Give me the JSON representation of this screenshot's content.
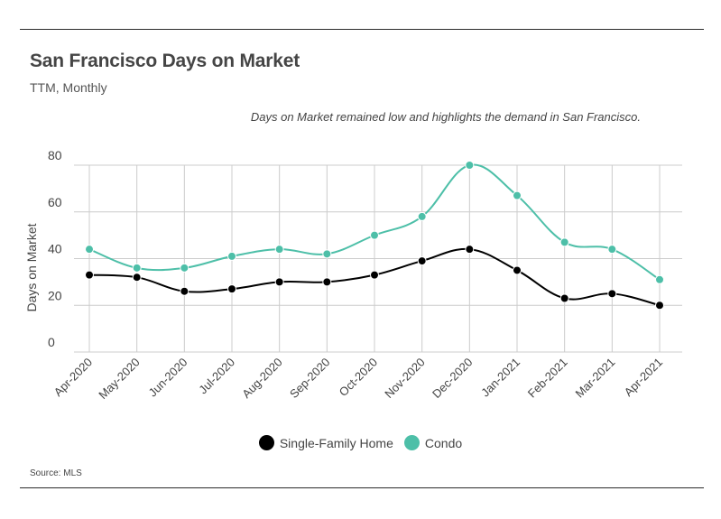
{
  "header": {
    "title": "San Francisco Days on Market",
    "subtitle": "TTM, Monthly"
  },
  "annotation": "Days on Market remained low and highlights the demand in San Francisco.",
  "source": "Source:  MLS",
  "colors": {
    "single_family": "#000000",
    "condo": "#4dbfa8",
    "grid": "#cccccc",
    "axis_text": "#444444"
  },
  "chart_data": {
    "type": "line",
    "title": "San Francisco Days on Market",
    "subtitle": "TTM, Monthly",
    "xlabel": "",
    "ylabel": "Days on Market",
    "ylim": [
      0,
      80
    ],
    "yticks": [
      0,
      20,
      40,
      60,
      80
    ],
    "grid": true,
    "legend_position": "bottom-center",
    "categories": [
      "Apr-2020",
      "May-2020",
      "Jun-2020",
      "Jul-2020",
      "Aug-2020",
      "Sep-2020",
      "Oct-2020",
      "Nov-2020",
      "Dec-2020",
      "Jan-2021",
      "Feb-2021",
      "Mar-2021",
      "Apr-2021"
    ],
    "series": [
      {
        "name": "Single-Family Home",
        "color": "#000000",
        "values": [
          33,
          32,
          26,
          27,
          30,
          30,
          33,
          39,
          44,
          35,
          23,
          25,
          20
        ]
      },
      {
        "name": "Condo",
        "color": "#4dbfa8",
        "values": [
          44,
          36,
          36,
          41,
          44,
          42,
          50,
          58,
          80,
          67,
          47,
          44,
          31
        ]
      }
    ]
  }
}
